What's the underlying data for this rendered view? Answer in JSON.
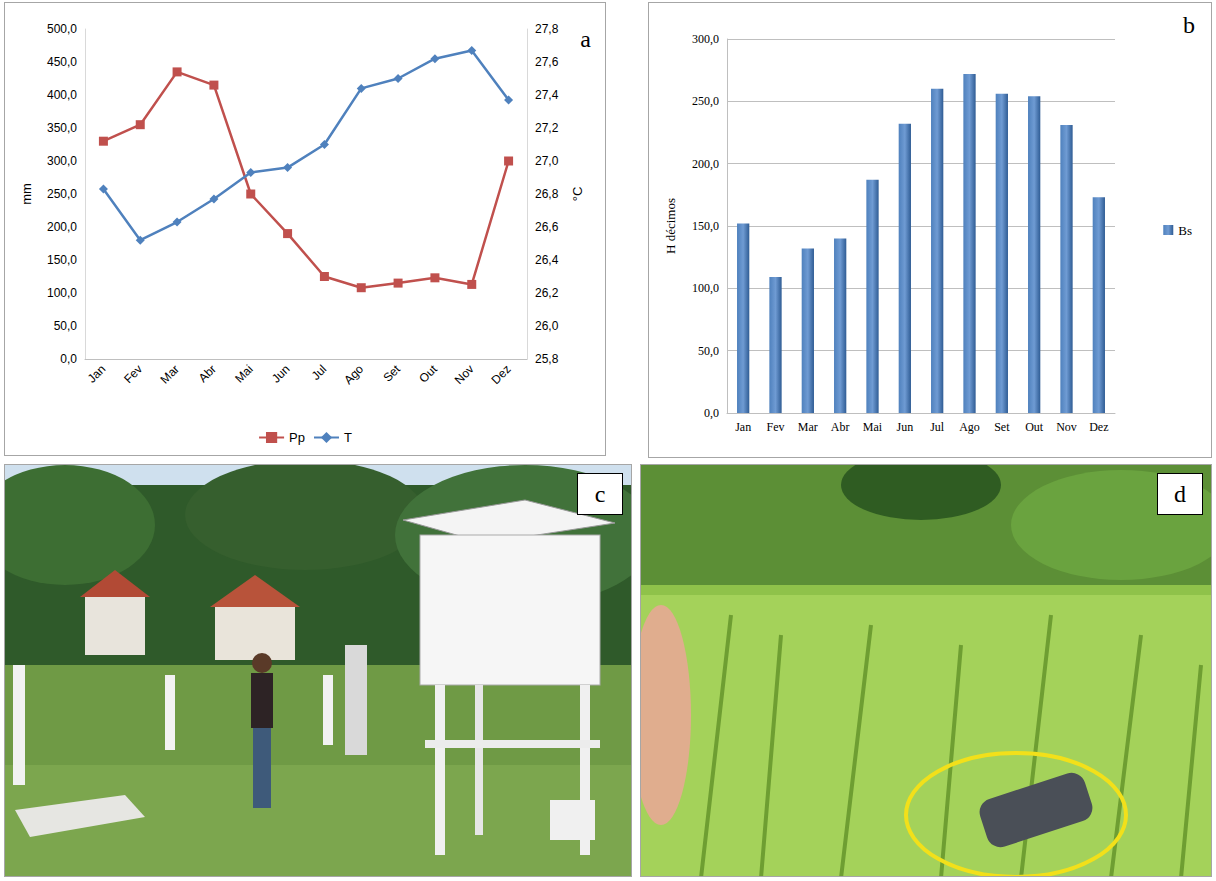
{
  "chart_data": [
    {
      "type": "line",
      "annotations": [
        "a"
      ],
      "categories": [
        "Jan",
        "Fev",
        "Mar",
        "Abr",
        "Mai",
        "Jun",
        "Jul",
        "Ago",
        "Set",
        "Out",
        "Nov",
        "Dez"
      ],
      "series": [
        {
          "name": "Pp",
          "color": "#c0504d",
          "marker": "square",
          "values": [
            330,
            355,
            435,
            415,
            250,
            190,
            125,
            108,
            115,
            123,
            113,
            300
          ]
        },
        {
          "name": "T",
          "color": "#4f81bd",
          "marker": "diamond",
          "axis": "y2",
          "values": [
            26.83,
            26.52,
            26.63,
            26.77,
            26.93,
            26.96,
            27.1,
            27.44,
            27.5,
            27.62,
            27.67,
            27.37
          ]
        }
      ],
      "y_label": "mm",
      "y2_label": "°C",
      "ylim": [
        0,
        500
      ],
      "yticks": [
        {
          "value": 0,
          "label": "0,0"
        },
        {
          "value": 50,
          "label": "50,0"
        },
        {
          "value": 100,
          "label": "100,0"
        },
        {
          "value": 150,
          "label": "150,0"
        },
        {
          "value": 200,
          "label": "200,0"
        },
        {
          "value": 250,
          "label": "250,0"
        },
        {
          "value": 300,
          "label": "300,0"
        },
        {
          "value": 350,
          "label": "350,0"
        },
        {
          "value": 400,
          "label": "400,0"
        },
        {
          "value": 450,
          "label": "450,0"
        },
        {
          "value": 500,
          "label": "500,0"
        }
      ],
      "y2lim": [
        25.8,
        27.8
      ],
      "y2ticks": [
        {
          "value": 25.8,
          "label": "25,8"
        },
        {
          "value": 26.0,
          "label": "26,0"
        },
        {
          "value": 26.2,
          "label": "26,2"
        },
        {
          "value": 26.4,
          "label": "26,4"
        },
        {
          "value": 26.6,
          "label": "26,6"
        },
        {
          "value": 26.8,
          "label": "26,8"
        },
        {
          "value": 27.0,
          "label": "27,0"
        },
        {
          "value": 27.2,
          "label": "27,2"
        },
        {
          "value": 27.4,
          "label": "27,4"
        },
        {
          "value": 27.6,
          "label": "27,6"
        },
        {
          "value": 27.8,
          "label": "27,8"
        }
      ],
      "grid": false,
      "legend": "bottom"
    },
    {
      "type": "bar",
      "annotations": [
        "b"
      ],
      "categories": [
        "Jan",
        "Fev",
        "Mar",
        "Abr",
        "Mai",
        "Jun",
        "Jul",
        "Ago",
        "Set",
        "Out",
        "Nov",
        "Dez"
      ],
      "series": [
        {
          "name": "Bs",
          "color": "#4f81bd",
          "values": [
            152,
            109,
            132,
            140,
            187,
            232,
            260,
            272,
            256,
            254,
            231,
            173
          ]
        }
      ],
      "y_label": "H décimos",
      "ylim": [
        0,
        300
      ],
      "yticks": [
        {
          "value": 0,
          "label": "0,0"
        },
        {
          "value": 50,
          "label": "50,0"
        },
        {
          "value": 100,
          "label": "100,0"
        },
        {
          "value": 150,
          "label": "150,0"
        },
        {
          "value": 200,
          "label": "200,0"
        },
        {
          "value": 250,
          "label": "250,0"
        },
        {
          "value": 300,
          "label": "300,0"
        }
      ],
      "grid": true,
      "legend": "right"
    }
  ],
  "panels": [
    {
      "label": "c"
    },
    {
      "label": "d"
    }
  ]
}
